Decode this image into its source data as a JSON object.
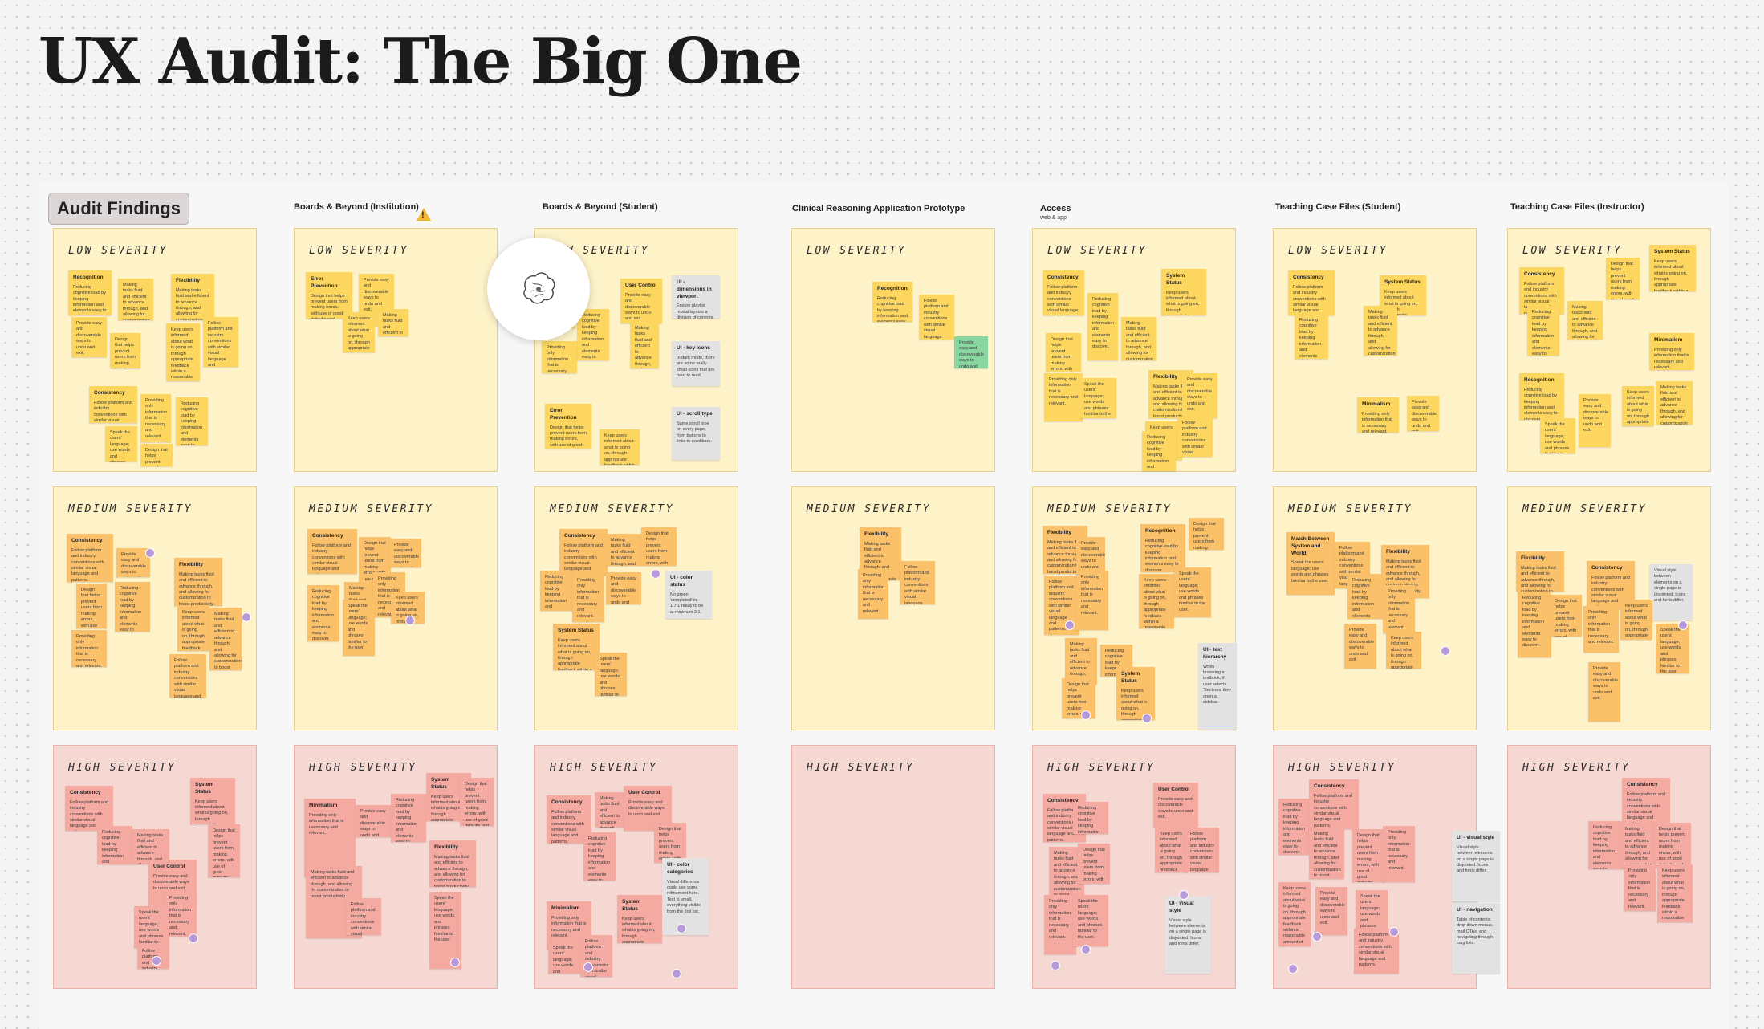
{
  "page_title": "UX Audit: The Big One",
  "section_chip": "Audit Findings",
  "columns": [
    {
      "label": "Boards & Beyond (Institution)",
      "warning": true
    },
    {
      "label": "Boards & Beyond (Student)",
      "warning": false
    },
    {
      "label": "Clinical Reasoning Application Prototype",
      "warning": false
    },
    {
      "label": "Access",
      "sublabel": "web & app",
      "warning": false
    },
    {
      "label": "Teaching Case Files (Student)",
      "warning": false
    },
    {
      "label": "Teaching Case Files (Instructor)",
      "warning": false
    }
  ],
  "severity_labels": {
    "low": "LOW SEVERITY",
    "medium": "MEDIUM SEVERITY",
    "high": "HIGH SEVERITY"
  },
  "warning_mark": "!",
  "cursor_icon": "brain-sketch-icon",
  "colors": {
    "low_medium_panel": "#fdf2c8",
    "high_panel": "#f6d8d3",
    "sticky_yellow": "#fdd660",
    "sticky_orange": "#fbc06a",
    "sticky_pink": "#f4aaa0",
    "sticky_gray": "#e2e2e2",
    "sticky_green": "#8ad6a0"
  },
  "note_titles": {
    "recognition": "Recognition",
    "flexibility": "Flexibility",
    "consistency": "Consistency",
    "error_prevention": "Error Prevention",
    "user_control": "User Control",
    "system_status": "System Status",
    "minimalism": "Minimalism",
    "match": "Match Between System and World",
    "ui_dimensions": "UI - dimensions in viewport",
    "ui_key_icons": "UI - key icons",
    "ui_scroll_type": "UI - scroll type",
    "ui_color_status": "UI - color status",
    "ui_text_hierarchy": "UI - text hierarchy",
    "ui_color_categories": "UI - color categories",
    "ui_visual_style": "UI - visual style",
    "ui_navigation": "UI - navigation"
  },
  "note_texts": {
    "recognition": "Reducing cognitive load by keeping information and elements easy to discover.",
    "flexibility": "Making tasks fluid and efficient to advance through, and allowing for customization to boost productivity.",
    "consistency": "Follow platform and industry conventions with similar visual language and patterns.",
    "error_prevention": "Design that helps prevent users from making errors, with use of good defaults and constraints.",
    "user_control": "Provide easy and discoverable ways to undo and exit.",
    "system_status": "Keep users informed about what is going on, through appropriate feedback within a reasonable amount of time.",
    "minimalism": "Providing only information that is necessary and relevant.",
    "match": "Speak the users' language; use words and phrases familiar to the user.",
    "ui_dimensions": "Ensure playlist modal layouts a division of controls, no need for to be more fully in viewport.",
    "ui_key_icons": "In dark mode, there are some really small icons that are hard to read.",
    "ui_scroll_type": "Same scroll type on every page, from buttons to links to scrollbars.",
    "ui_color_status": "No green 'completed' in 1.7:1 ready to be at minimum 3:1.",
    "ui_text_hierarchy": "When browsing a textbook, if user selects 'Sections' they open a sidebar.",
    "ui_color_categories": "Visual difference could use some refinement here. Text is small, everything visible from the first list.",
    "ui_visual_style": "Visual style between elements on a single page is disjointed. Icons and fonts differ.",
    "ui_navigation": "Table of contents, drop down menus, mail CTAs, and navigating through long lists."
  }
}
